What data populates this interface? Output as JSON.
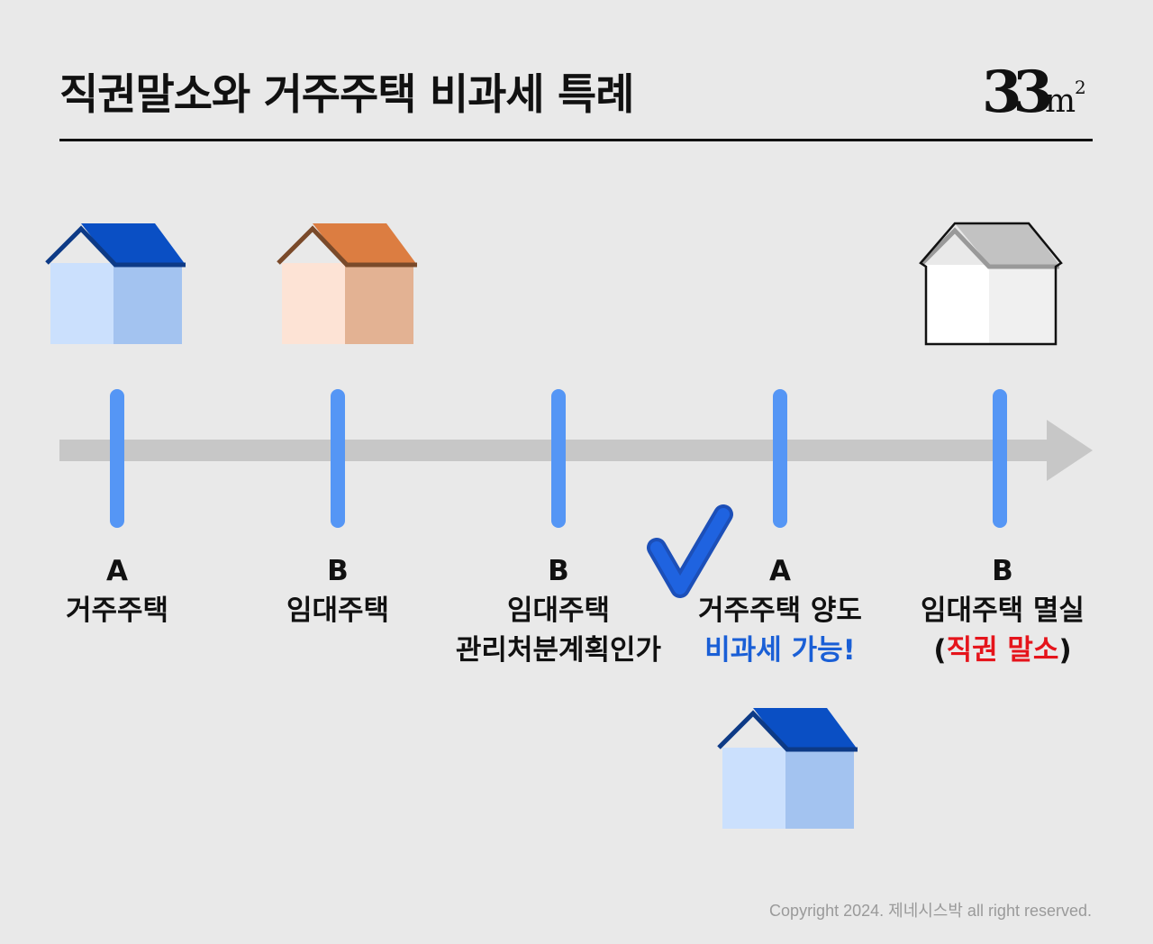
{
  "header": {
    "title": "직권말소와 거주주택 비과세 특례",
    "logo_text": "33m²"
  },
  "timeline": {
    "events": [
      {
        "letter": "A",
        "line1": "거주주택",
        "line2": ""
      },
      {
        "letter": "B",
        "line1": "임대주택",
        "line2": ""
      },
      {
        "letter": "B",
        "line1": "임대주택",
        "line2": "관리처분계획인가"
      },
      {
        "letter": "A",
        "line1": "거주주택 양도",
        "line2": "비과세 가능!"
      },
      {
        "letter": "B",
        "line1": "임대주택 멸실",
        "line2_open": "(",
        "line2": "직권 말소",
        "line2_close": ")"
      }
    ]
  },
  "icons": {
    "house_a": "house-blue-icon",
    "house_b": "house-orange-icon",
    "house_demolished": "house-white-outline-icon",
    "check": "check-mark-icon"
  },
  "colors": {
    "blue_roof": "#0a4fc4",
    "orange_roof": "#dc7d41",
    "tick": "#5596f5",
    "highlight_blue": "#1a5fd6",
    "highlight_red": "#e5141b"
  },
  "footer": {
    "copyright": "Copyright 2024. 제네시스박 all right reserved."
  }
}
